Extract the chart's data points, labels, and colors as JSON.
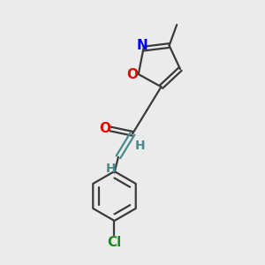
{
  "bg_color": "#ebebeb",
  "bond_color": "#3a3a3a",
  "bond_color_teal": "#4a8a8a",
  "atom_colors": {
    "N": "#0000ee",
    "O": "#ee0000",
    "Cl": "#228822",
    "C": "#3a3a3a"
  },
  "lw": 1.6,
  "figsize": [
    3.0,
    3.0
  ],
  "dpi": 100,
  "xlim": [
    0,
    10
  ],
  "ylim": [
    0,
    10
  ]
}
